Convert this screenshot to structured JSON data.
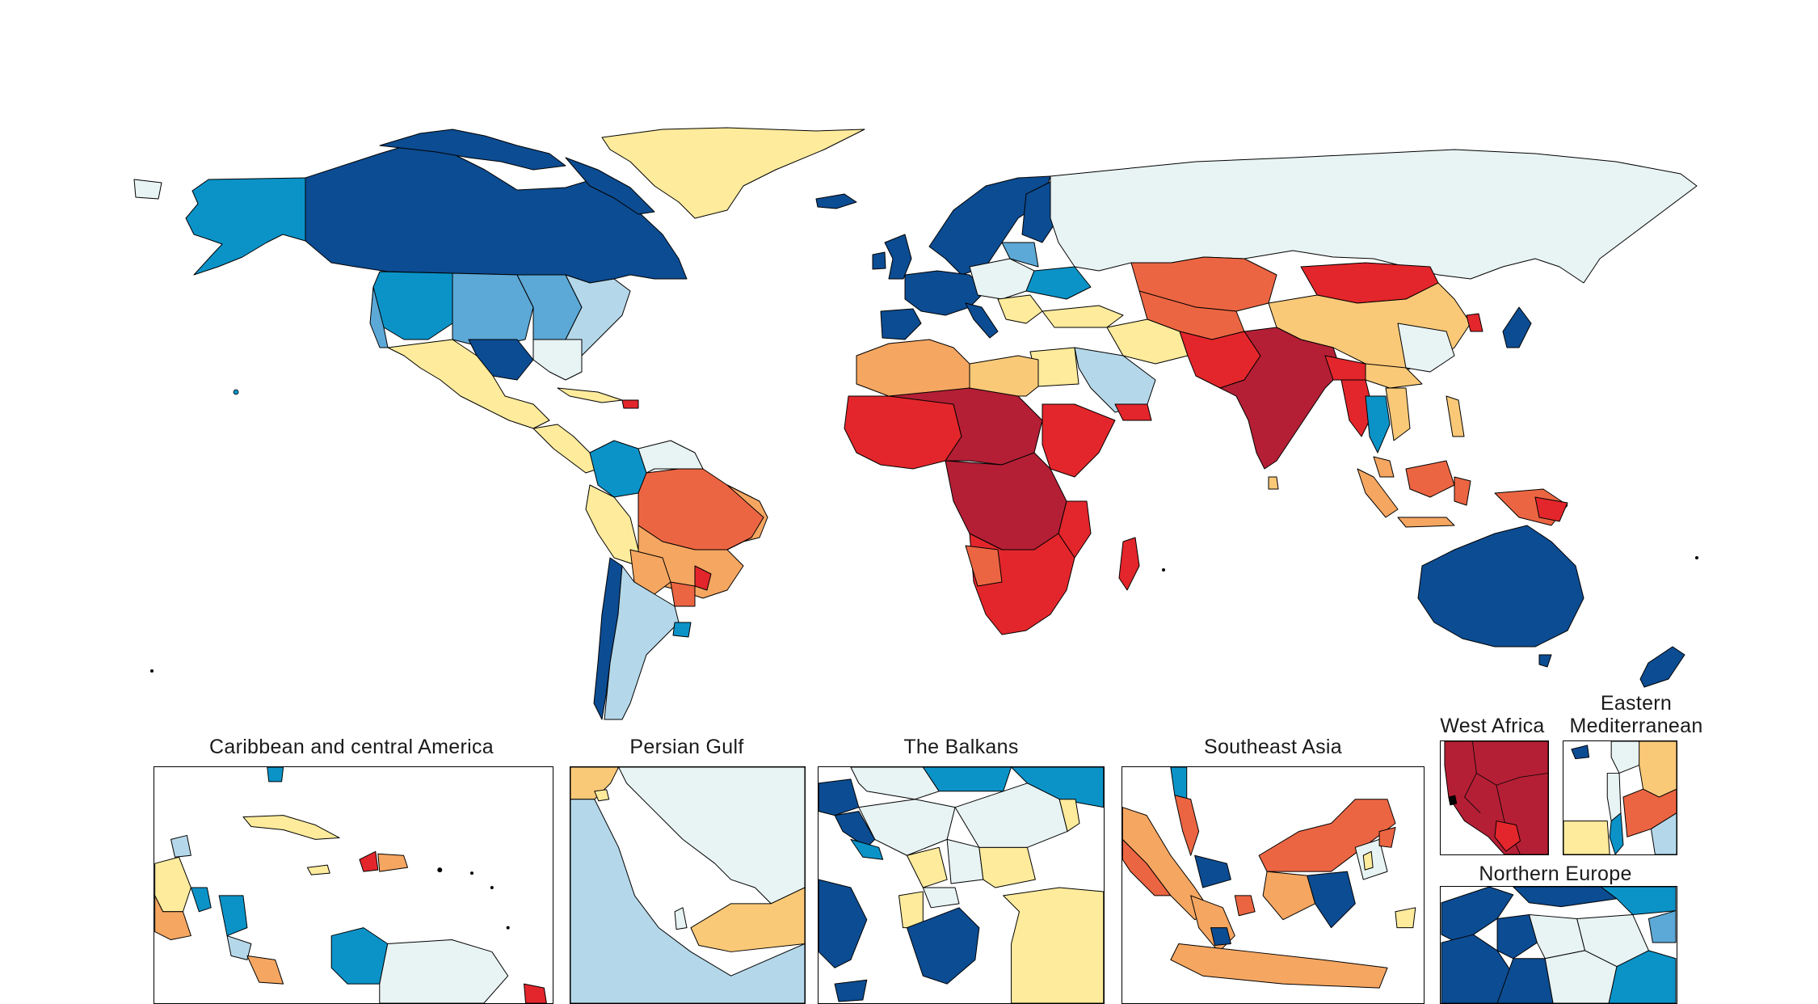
{
  "palette": {
    "dark_red": "#B41F35",
    "red": "#E3262B",
    "orange_red": "#EC6542",
    "orange": "#F5A661",
    "light_orange": "#FAC978",
    "yellow": "#FEEB9C",
    "pale": "#E8F3F3",
    "light_blue": "#B4D8EA",
    "mid_blue": "#5CA8D6",
    "blue": "#0B93C8",
    "dark_blue": "#0C4C92"
  },
  "insets": [
    {
      "title": "Caribbean and central America"
    },
    {
      "title": "Persian Gulf"
    },
    {
      "title": "The Balkans"
    },
    {
      "title": "Southeast Asia"
    },
    {
      "title": "West Africa"
    },
    {
      "title": "Eastern\nMediterranean"
    },
    {
      "title": "Northern Europe"
    }
  ]
}
